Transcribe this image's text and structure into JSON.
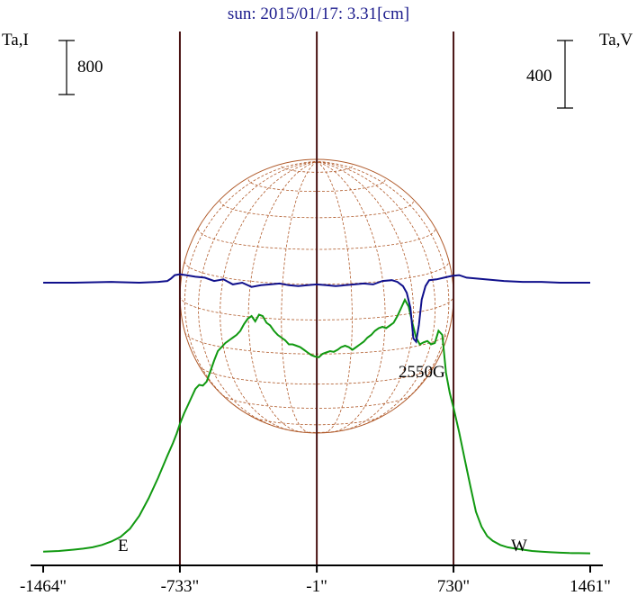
{
  "title": "sun: 2015/01/17: 3.31[cm]",
  "left_axis_label": "Ta,I",
  "right_axis_label": "Ta,V",
  "left_scale_label": "800",
  "right_scale_label": "400",
  "east_label": "E",
  "west_label": "W",
  "annotation": "2550G",
  "colors": {
    "intensity": "#119911",
    "polarization": "#10108c",
    "grid": "#b05a2a",
    "vertical_lines": "#4a1414",
    "axes": "#000000",
    "title": "#1a1a8c"
  },
  "chart_data": {
    "type": "line",
    "title": "sun: 2015/01/17: 3.31[cm]",
    "x_tick_labels": [
      "-1464\"",
      "-733\"",
      "-1\"",
      "730\"",
      "1461\""
    ],
    "x_ticks": [
      -1464,
      -733,
      -1,
      730,
      1461
    ],
    "xlim": [
      -1464,
      1461
    ],
    "vertical_lines_at": [
      -733,
      -1,
      730
    ],
    "solar_disk_radius": 730,
    "series": [
      {
        "key": "Ta,I",
        "scale_bar": 800,
        "x": [
          -1464,
          -1380,
          -1300,
          -1250,
          -1200,
          -1150,
          -1100,
          -1050,
          -1000,
          -950,
          -900,
          -850,
          -800,
          -770,
          -750,
          -733,
          -710,
          -690,
          -670,
          -650,
          -630,
          -610,
          -590,
          -570,
          -550,
          -530,
          -510,
          -490,
          -470,
          -450,
          -430,
          -410,
          -390,
          -370,
          -350,
          -330,
          -310,
          -290,
          -270,
          -250,
          -230,
          -210,
          -190,
          -170,
          -150,
          -130,
          -110,
          -90,
          -70,
          -50,
          -30,
          -10,
          10,
          30,
          50,
          70,
          90,
          110,
          130,
          150,
          170,
          190,
          210,
          230,
          250,
          270,
          290,
          310,
          330,
          350,
          370,
          390,
          410,
          430,
          450,
          470,
          490,
          510,
          530,
          550,
          570,
          590,
          610,
          630,
          650,
          670,
          690,
          710,
          730,
          760,
          790,
          820,
          850,
          880,
          910,
          940,
          980,
          1020,
          1060,
          1100,
          1150,
          1200,
          1250,
          1300,
          1350,
          1400,
          1461
        ],
        "y": [
          30,
          40,
          60,
          75,
          95,
          130,
          180,
          250,
          370,
          560,
          820,
          1120,
          1450,
          1640,
          1780,
          1920,
          2080,
          2200,
          2320,
          2440,
          2500,
          2490,
          2550,
          2700,
          2860,
          3000,
          3060,
          3120,
          3160,
          3200,
          3240,
          3300,
          3400,
          3480,
          3520,
          3440,
          3540,
          3520,
          3420,
          3380,
          3300,
          3240,
          3200,
          3160,
          3100,
          3100,
          3080,
          3060,
          3020,
          2980,
          2940,
          2920,
          2910,
          2960,
          2980,
          3000,
          2990,
          3020,
          3060,
          3080,
          3060,
          3020,
          3060,
          3100,
          3140,
          3200,
          3240,
          3300,
          3340,
          3360,
          3340,
          3380,
          3420,
          3520,
          3640,
          3760,
          3660,
          3420,
          3200,
          3100,
          3130,
          3150,
          3100,
          3120,
          3300,
          3240,
          2680,
          2380,
          2160,
          1800,
          1400,
          1000,
          620,
          400,
          260,
          190,
          130,
          95,
          75,
          60,
          40,
          30,
          22,
          15,
          10,
          8,
          5
        ]
      },
      {
        "key": "Ta,V",
        "scale_bar": 400,
        "x": [
          -1464,
          -1300,
          -1100,
          -950,
          -850,
          -800,
          -780,
          -760,
          -733,
          -700,
          -650,
          -600,
          -550,
          -500,
          -450,
          -400,
          -350,
          -300,
          -250,
          -200,
          -150,
          -100,
          -50,
          -1,
          50,
          100,
          150,
          200,
          250,
          300,
          350,
          400,
          430,
          460,
          480,
          500,
          515,
          530,
          545,
          560,
          580,
          600,
          640,
          680,
          720,
          760,
          800,
          900,
          1000,
          1100,
          1200,
          1300,
          1461
        ],
        "y": [
          0,
          0,
          5,
          0,
          5,
          10,
          25,
          45,
          50,
          45,
          35,
          30,
          10,
          20,
          -10,
          0,
          -25,
          -15,
          -10,
          -5,
          -15,
          -20,
          -15,
          -10,
          -15,
          -20,
          -15,
          -10,
          -5,
          -10,
          10,
          15,
          5,
          -20,
          -60,
          -150,
          -330,
          -350,
          -250,
          -100,
          -20,
          15,
          20,
          30,
          40,
          45,
          30,
          20,
          10,
          5,
          5,
          0,
          0
        ]
      }
    ],
    "annotations": [
      {
        "text": "2550G",
        "x": 525,
        "series": "Ta,V"
      }
    ]
  }
}
